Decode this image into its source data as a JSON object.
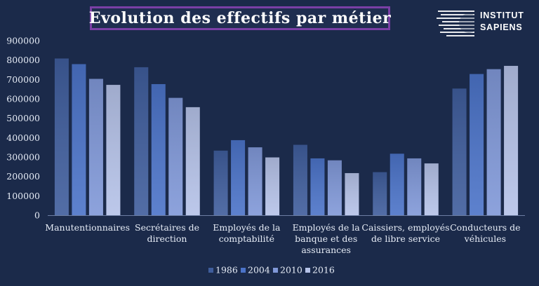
{
  "header": {
    "title": "Evolution des effectifs par métier",
    "logo_line1": "INSTITUT",
    "logo_line2": "SAPIENS"
  },
  "chart_data": {
    "type": "bar",
    "title": "Evolution des effectifs par métier",
    "xlabel": "",
    "ylabel": "",
    "ylim": [
      0,
      900000
    ],
    "yticks": [
      0,
      100000,
      200000,
      300000,
      400000,
      500000,
      600000,
      700000,
      800000,
      900000
    ],
    "grid": false,
    "legend": "bottom",
    "categories": [
      [
        "Manutentionnaires"
      ],
      [
        "Secrétaires de",
        "direction"
      ],
      [
        "Employés de la",
        "comptabilité"
      ],
      [
        "Employés de la",
        "banque et des",
        "assurances"
      ],
      [
        "Caissiers, employés",
        "de libre service"
      ],
      [
        "Conducteurs de",
        "véhicules"
      ]
    ],
    "series": [
      {
        "name": "1986",
        "color": "#3f5d9c",
        "values": [
          808000,
          763000,
          333000,
          363000,
          222000,
          653000
        ]
      },
      {
        "name": "2004",
        "color": "#4b73c8",
        "values": [
          779000,
          676000,
          387000,
          293000,
          317000,
          728000
        ]
      },
      {
        "name": "2010",
        "color": "#8098d8",
        "values": [
          703000,
          605000,
          350000,
          283000,
          293000,
          753000
        ]
      },
      {
        "name": "2016",
        "color": "#b5c2e8",
        "values": [
          672000,
          557000,
          298000,
          217000,
          267000,
          770000
        ]
      }
    ]
  }
}
